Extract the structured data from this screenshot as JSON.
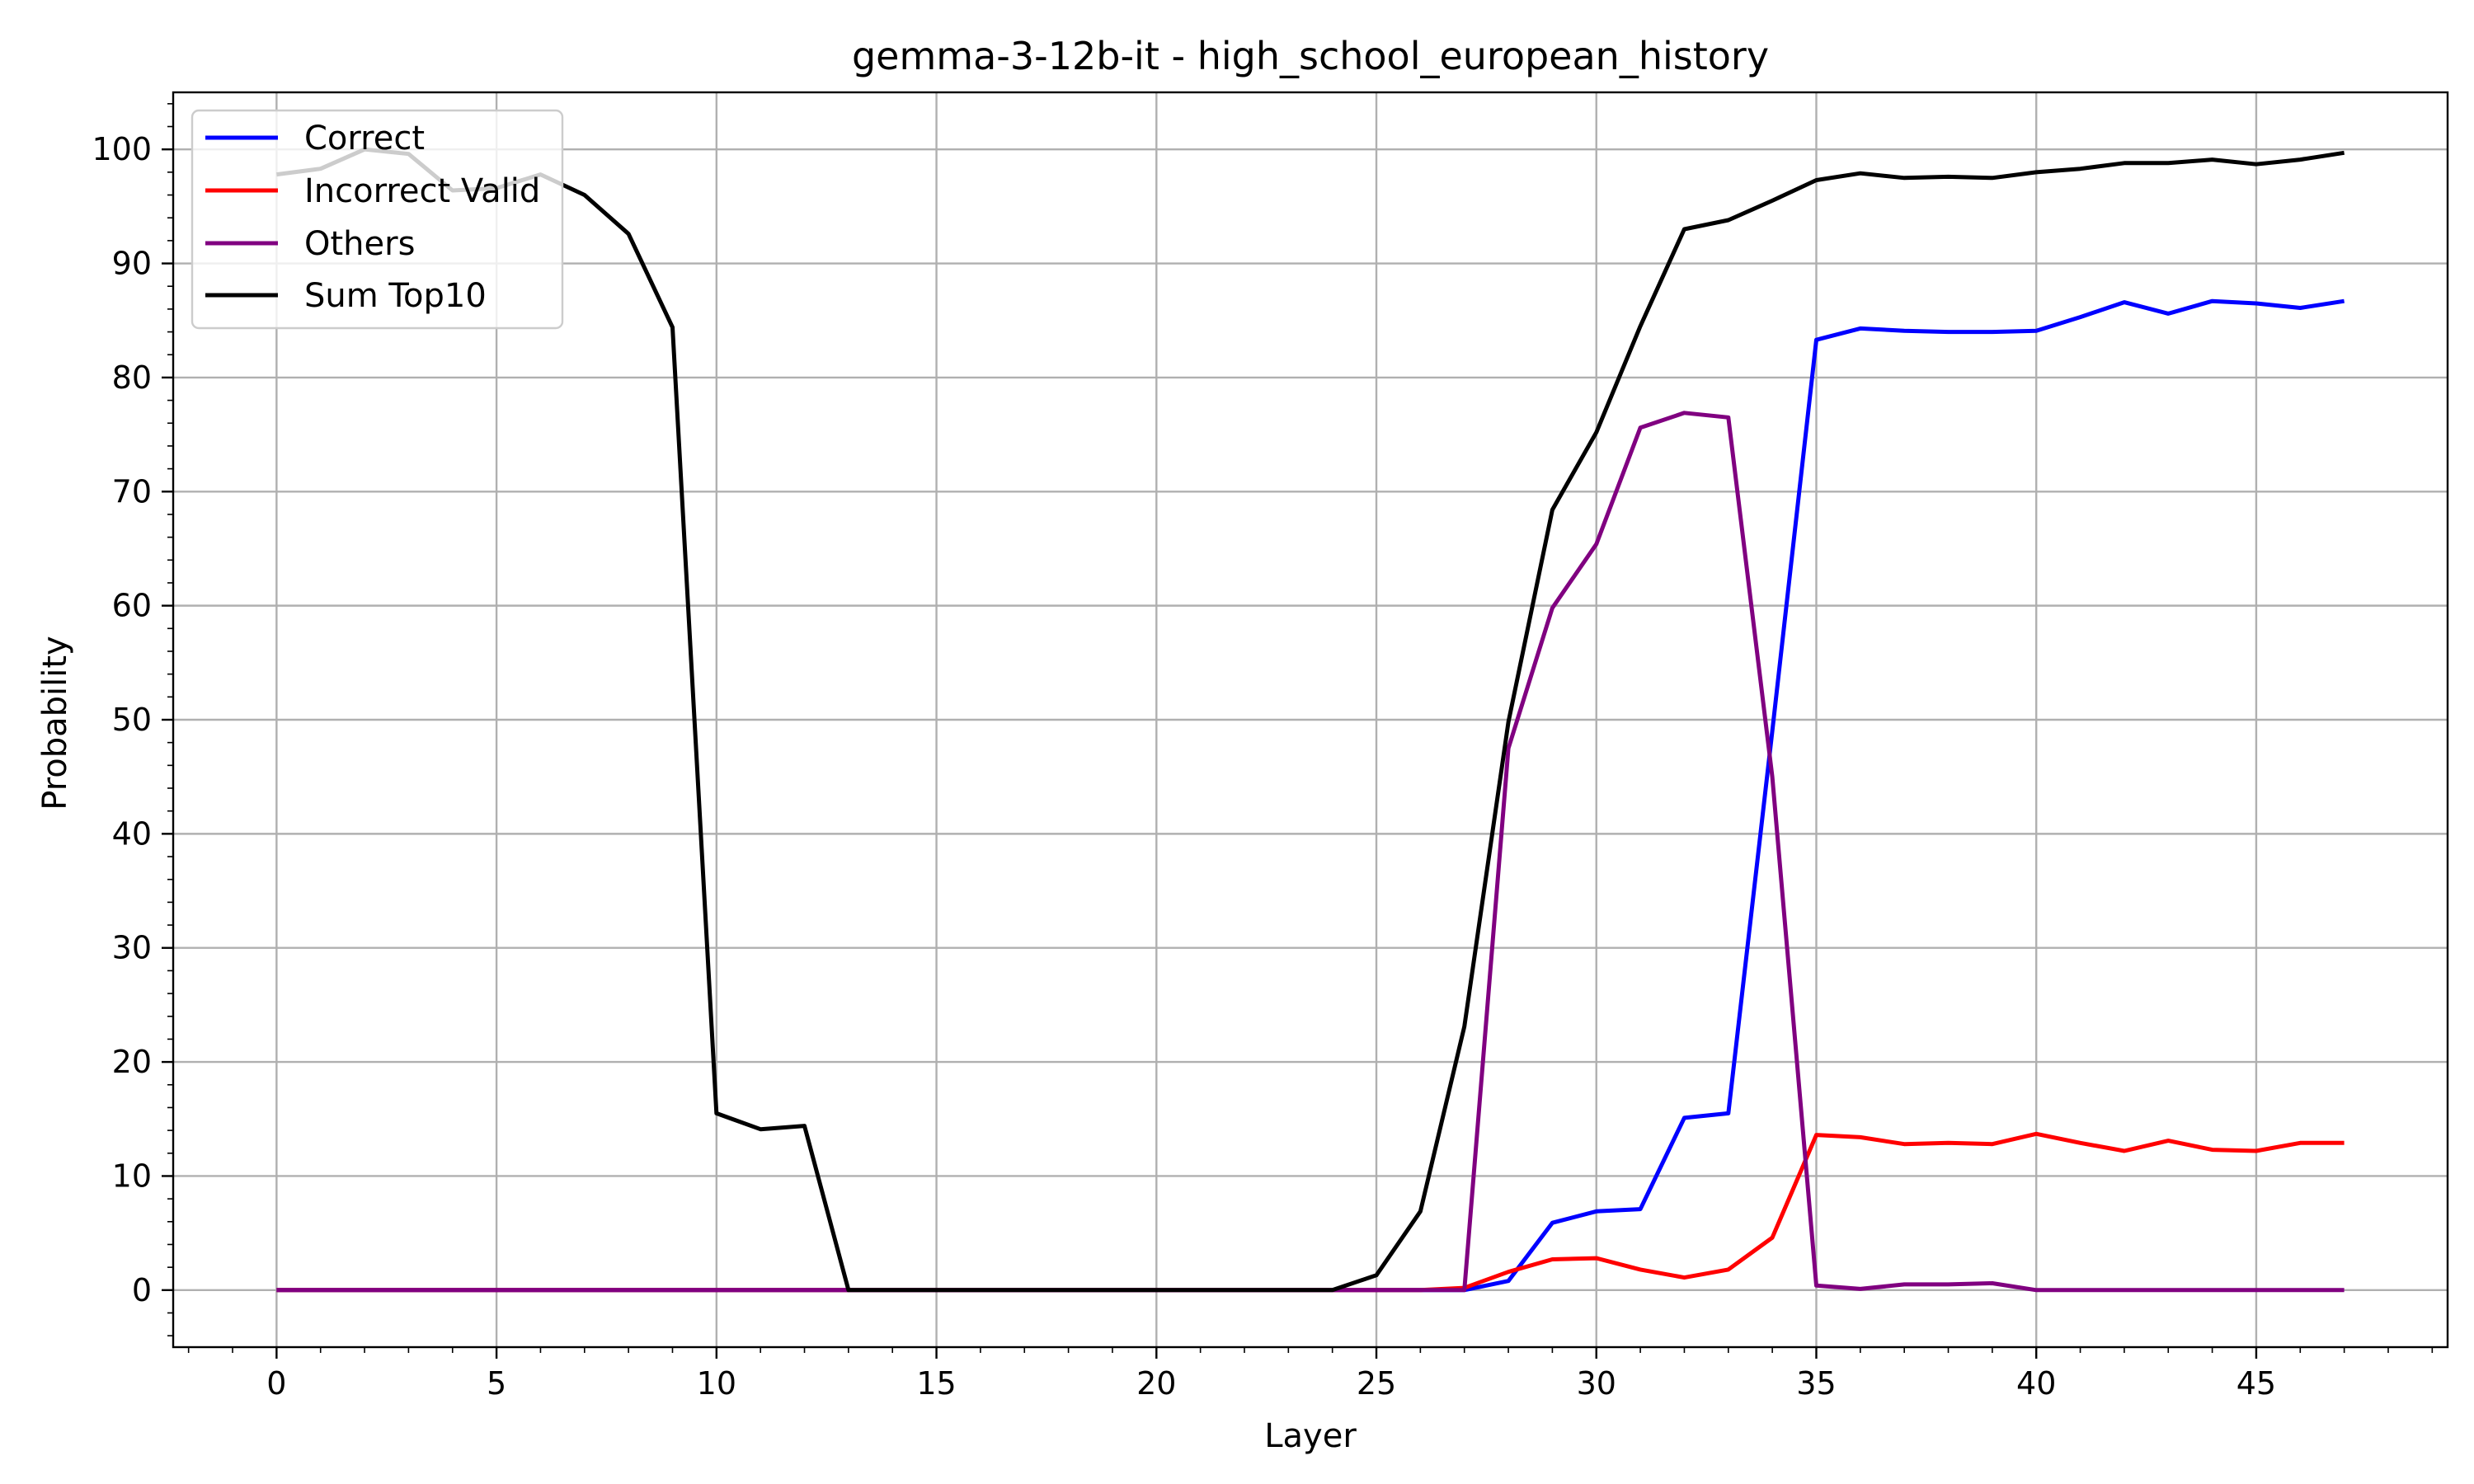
{
  "chart_data": {
    "type": "line",
    "title": "gemma-3-12b-it - high_school_european_history",
    "xlabel": "Layer",
    "ylabel": "Probability",
    "xlim": [
      -2.35,
      49.35
    ],
    "ylim": [
      -5,
      105
    ],
    "xticks": [
      0,
      5,
      10,
      15,
      20,
      25,
      30,
      35,
      40,
      45
    ],
    "yticks": [
      0,
      10,
      20,
      30,
      40,
      50,
      60,
      70,
      80,
      90,
      100
    ],
    "grid": true,
    "legend_position": "upper-left",
    "x": [
      0,
      1,
      2,
      3,
      4,
      5,
      6,
      7,
      8,
      9,
      10,
      11,
      12,
      13,
      14,
      15,
      16,
      17,
      18,
      19,
      20,
      21,
      22,
      23,
      24,
      25,
      26,
      27,
      28,
      29,
      30,
      31,
      32,
      33,
      34,
      35,
      36,
      37,
      38,
      39,
      40,
      41,
      42,
      43,
      44,
      45,
      46,
      47
    ],
    "series": [
      {
        "name": "Correct",
        "color": "#0000ff",
        "values": [
          0,
          0,
          0,
          0,
          0,
          0,
          0,
          0,
          0,
          0,
          0,
          0,
          0,
          0,
          0,
          0,
          0,
          0,
          0,
          0,
          0,
          0,
          0,
          0,
          0,
          0,
          0,
          0,
          0.8,
          5.9,
          6.9,
          7.1,
          15.1,
          15.5,
          49.0,
          83.3,
          84.3,
          84.1,
          84.0,
          84.0,
          84.1,
          85.3,
          86.6,
          85.6,
          86.7,
          86.5,
          86.1,
          86.7
        ]
      },
      {
        "name": "Incorrect Valid",
        "color": "#ff0000",
        "values": [
          0,
          0,
          0,
          0,
          0,
          0,
          0,
          0,
          0,
          0,
          0,
          0,
          0,
          0,
          0,
          0,
          0,
          0,
          0,
          0,
          0,
          0,
          0,
          0,
          0,
          0,
          0,
          0.2,
          1.6,
          2.7,
          2.8,
          1.8,
          1.1,
          1.8,
          4.6,
          13.6,
          13.4,
          12.8,
          12.9,
          12.8,
          13.7,
          12.9,
          12.2,
          13.1,
          12.3,
          12.2,
          12.9,
          12.9
        ]
      },
      {
        "name": "Others",
        "color": "#800080",
        "values": [
          0,
          0,
          0,
          0,
          0,
          0,
          0,
          0,
          0,
          0,
          0,
          0,
          0,
          0,
          0,
          0,
          0,
          0,
          0,
          0,
          0,
          0,
          0,
          0,
          0,
          0,
          0,
          0,
          47.5,
          59.8,
          65.4,
          75.6,
          76.9,
          76.5,
          45.0,
          0.4,
          0.1,
          0.5,
          0.5,
          0.6,
          0,
          0,
          0,
          0,
          0,
          0,
          0,
          0
        ]
      },
      {
        "name": "Sum Top10",
        "color": "#000000",
        "values": [
          97.8,
          98.3,
          100.0,
          99.6,
          96.4,
          96.6,
          97.8,
          96.0,
          92.6,
          84.4,
          15.5,
          14.1,
          14.4,
          0,
          0,
          0,
          0,
          0,
          0,
          0,
          0,
          0,
          0,
          0,
          0,
          1.3,
          6.9,
          23.1,
          49.8,
          68.4,
          75.2,
          84.5,
          93.0,
          93.8,
          95.5,
          97.3,
          97.9,
          97.5,
          97.6,
          97.5,
          98.0,
          98.3,
          98.8,
          98.8,
          99.1,
          98.7,
          99.1,
          99.7
        ]
      }
    ]
  }
}
